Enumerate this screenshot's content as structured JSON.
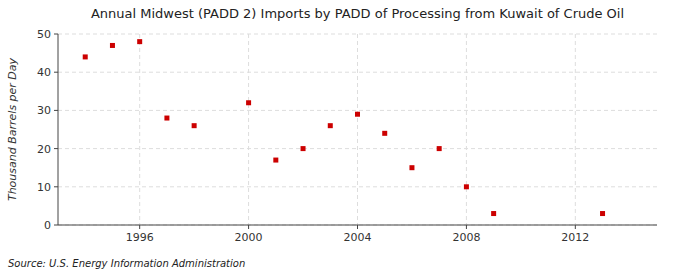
{
  "chart_data": {
    "type": "scatter",
    "title": "Annual Midwest (PADD 2) Imports by PADD of Processing from Kuwait of Crude Oil",
    "y_label": "Thousand Barrels per Day",
    "source": "Source: U.S. Energy Information Administration",
    "x": [
      1994,
      1995,
      1996,
      1997,
      1998,
      2000,
      2001,
      2002,
      2003,
      2004,
      2005,
      2006,
      2007,
      2008,
      2009,
      2013
    ],
    "values": [
      44,
      47,
      48,
      28,
      26,
      32,
      17,
      20,
      26,
      29,
      24,
      15,
      20,
      10,
      3,
      3
    ],
    "color": "#cc0000",
    "marker": "square",
    "xlim": [
      1993,
      2015
    ],
    "ylim": [
      0,
      50
    ],
    "xticks": [
      1996,
      2000,
      2004,
      2008,
      2012
    ],
    "yticks": [
      0,
      10,
      20,
      30,
      40,
      50
    ],
    "grid": true
  }
}
